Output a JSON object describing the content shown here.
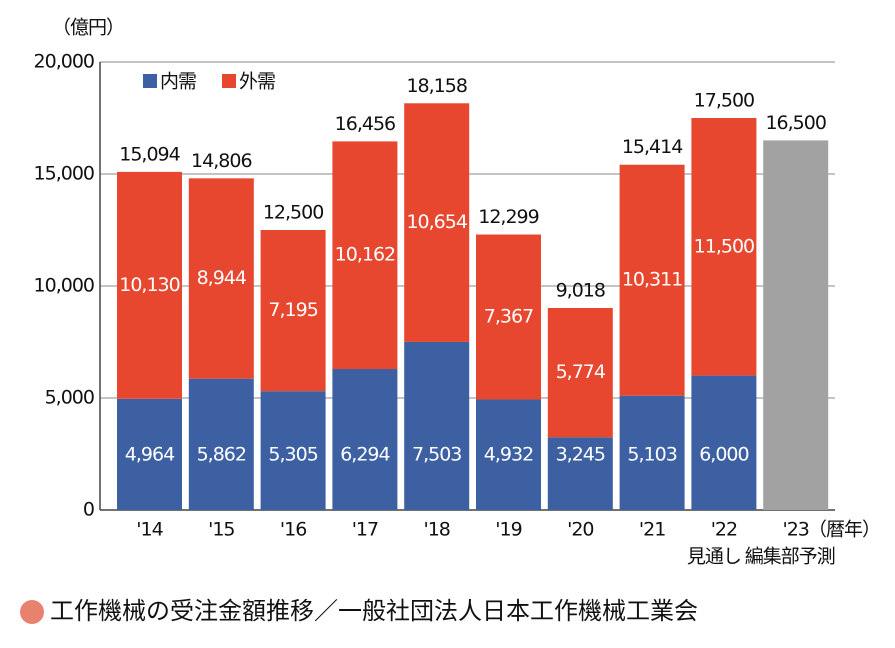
{
  "chart_data": {
    "type": "stacked-bar",
    "y_unit_label": "（億円）",
    "x_unit_label": "（暦年）",
    "categories": [
      "'14",
      "'15",
      "'16",
      "'17",
      "'18",
      "'19",
      "'20",
      "'21",
      "'22",
      "'23"
    ],
    "category_notes": [
      null,
      null,
      null,
      null,
      null,
      null,
      null,
      null,
      "見通し",
      "編集部予測"
    ],
    "series": [
      {
        "name": "内需",
        "color": "#3d60a3",
        "values": [
          4964,
          5862,
          5305,
          6294,
          7503,
          4932,
          3245,
          5103,
          6000,
          null
        ],
        "value_labels": [
          "4,964",
          "5,862",
          "5,305",
          "6,294",
          "7,503",
          "4,932",
          "3,245",
          "5,103",
          "6,000",
          null
        ]
      },
      {
        "name": "外需",
        "color": "#e8472f",
        "values": [
          10130,
          8944,
          7195,
          10162,
          10654,
          7367,
          5774,
          10311,
          11500,
          null
        ],
        "value_labels": [
          "10,130",
          "8,944",
          "7,195",
          "10,162",
          "10,654",
          "7,367",
          "5,774",
          "10,311",
          "11,500",
          null
        ]
      }
    ],
    "totals": {
      "values": [
        15094,
        14806,
        12500,
        16456,
        18158,
        12299,
        9018,
        15414,
        17500,
        16500
      ],
      "value_labels": [
        "15,094",
        "14,806",
        "12,500",
        "16,456",
        "18,158",
        "12,299",
        "9,018",
        "15,414",
        "17,500",
        "16,500"
      ]
    },
    "forecast_color": "#a2a2a2",
    "ylim": [
      0,
      20000
    ],
    "yticks": [
      0,
      {
        "value": 5000,
        "label": "5,000"
      },
      {
        "value": 10000,
        "label": "10,000"
      },
      {
        "value": 15000,
        "label": "15,000"
      },
      {
        "value": 20000,
        "label": "20,000"
      }
    ],
    "grid": true,
    "caption": "工作機械の受注金額推移／一般社団法人日本工作機械工業会"
  }
}
